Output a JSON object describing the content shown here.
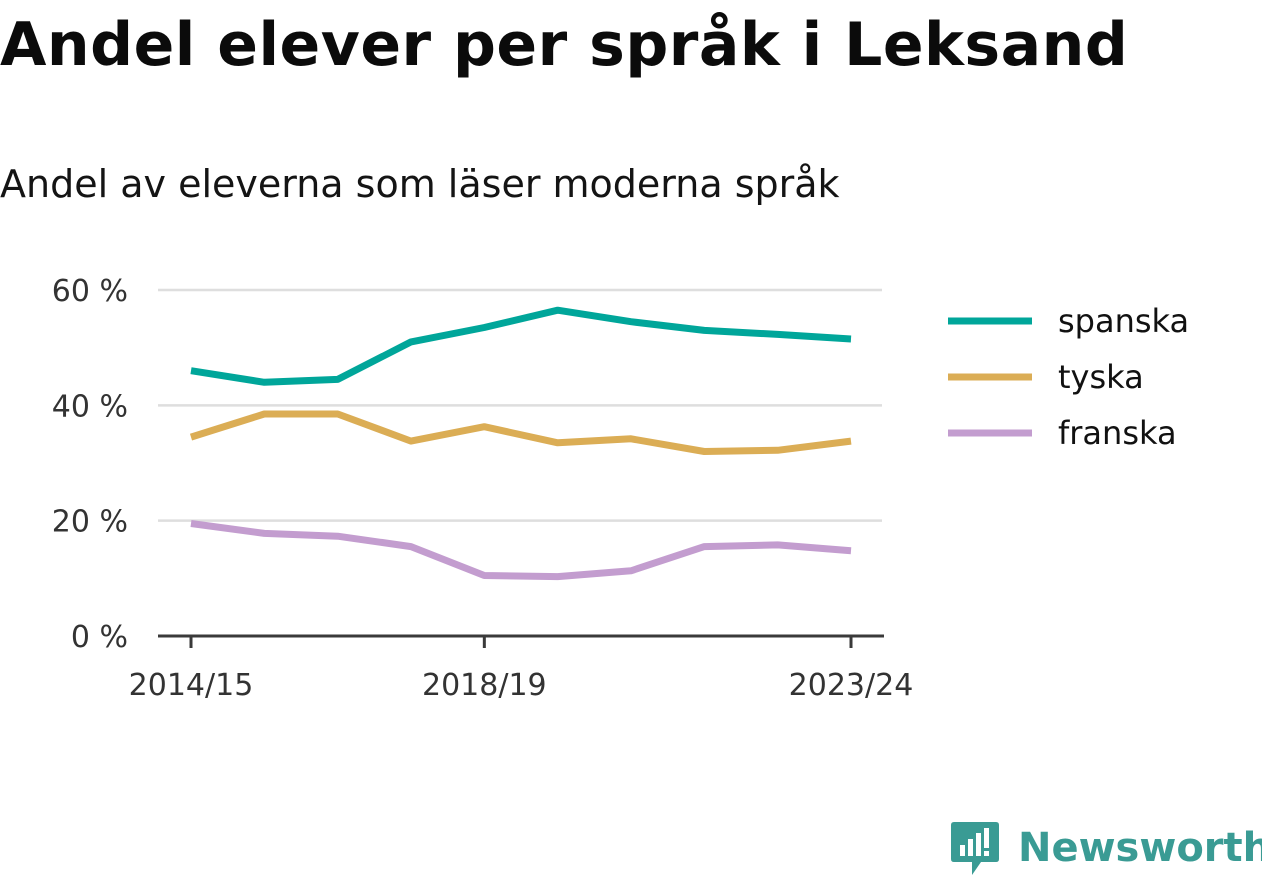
{
  "chart_data": {
    "type": "line",
    "title": "Andel elever per språk i Leksand",
    "subtitle": "Andel av eleverna som läser moderna språk",
    "x": [
      "2014/15",
      "2015/16",
      "2016/17",
      "2017/18",
      "2018/19",
      "2019/20",
      "2020/21",
      "2021/22",
      "2022/23",
      "2023/24"
    ],
    "x_tick_labels": [
      "2014/15",
      "2018/19",
      "2023/24"
    ],
    "y_ticks": [
      0,
      20,
      40,
      60
    ],
    "y_tick_labels": [
      "0 %",
      "20 %",
      "40 %",
      "60 %"
    ],
    "ylim": [
      0,
      60
    ],
    "grid": true,
    "legend_position": "right",
    "series": [
      {
        "name": "spanska",
        "color": "#00a69a",
        "values": [
          46,
          44,
          44.5,
          51,
          53.5,
          56.5,
          54.5,
          53,
          52.3,
          51.5
        ]
      },
      {
        "name": "tyska",
        "color": "#dbad55",
        "values": [
          34.5,
          38.5,
          38.5,
          33.8,
          36.3,
          33.5,
          34.2,
          32,
          32.2,
          33.8
        ]
      },
      {
        "name": "franska",
        "color": "#c39dcf",
        "values": [
          19.5,
          17.8,
          17.3,
          15.5,
          10.5,
          10.3,
          11.3,
          15.5,
          15.8,
          14.8
        ]
      }
    ]
  },
  "branding": {
    "name": "Newsworthy",
    "logo_icon": "newsworthy-logo-icon",
    "color": "#3a9b94"
  }
}
